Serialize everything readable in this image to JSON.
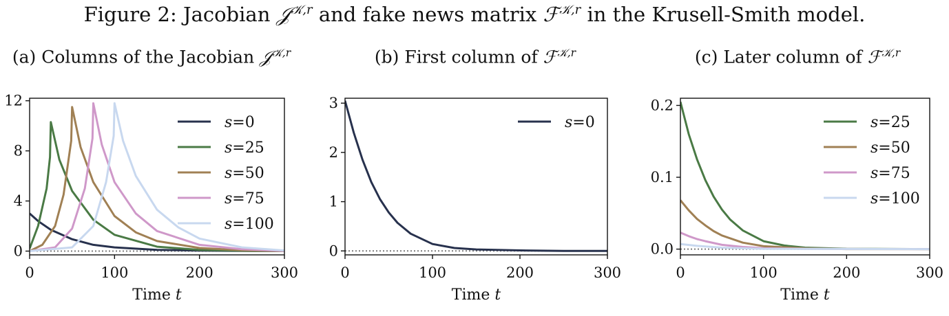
{
  "figure_title": {
    "prefix": "Figure 2: Jacobian ",
    "J": "𝒥",
    "J_sup": "𝒦,r",
    "middle": " and fake news matrix ",
    "F": "ℱ",
    "F_sup": "𝒦,r",
    "suffix": " in the Krusell-Smith model."
  },
  "panels": [
    {
      "prefix": "(a) Columns of the Jacobian ",
      "sym": "𝒥",
      "sup": "𝒦,r"
    },
    {
      "prefix": "(b) First column of ",
      "sym": "ℱ",
      "sup": "𝒦,r"
    },
    {
      "prefix": "(c) Later column of ",
      "sym": "ℱ",
      "sup": "𝒦,r"
    }
  ],
  "chart_data": [
    {
      "type": "line",
      "title": "(a) Columns of the Jacobian 𝒥^{𝒦,r}",
      "xlabel": "Time t",
      "ylabel": "",
      "xlim": [
        0,
        300
      ],
      "ylim": [
        -0.3,
        12.2
      ],
      "xticks": [
        "0",
        "100",
        "200",
        "300"
      ],
      "yticks": [
        "0",
        "4",
        "8",
        "12"
      ],
      "xtick_values": [
        0,
        100,
        200,
        300
      ],
      "ytick_values": [
        0,
        4,
        8,
        12
      ],
      "zero_line": true,
      "legend_position": "top-right",
      "series": [
        {
          "name": "s=0",
          "color": "#27314d",
          "points": [
            [
              0,
              3.0
            ],
            [
              10,
              2.4
            ],
            [
              25,
              1.7
            ],
            [
              50,
              0.95
            ],
            [
              75,
              0.5
            ],
            [
              100,
              0.3
            ],
            [
              150,
              0.1
            ],
            [
              200,
              0.04
            ],
            [
              250,
              0.01
            ],
            [
              300,
              0.0
            ]
          ]
        },
        {
          "name": "s=25",
          "color": "#4a7a45",
          "points": [
            [
              0,
              0.2
            ],
            [
              10,
              2.0
            ],
            [
              20,
              5.0
            ],
            [
              24,
              7.5
            ],
            [
              25,
              10.3
            ],
            [
              35,
              7.3
            ],
            [
              50,
              4.8
            ],
            [
              75,
              2.5
            ],
            [
              100,
              1.3
            ],
            [
              150,
              0.35
            ],
            [
              200,
              0.1
            ],
            [
              250,
              0.03
            ],
            [
              300,
              0.0
            ]
          ]
        },
        {
          "name": "s=50",
          "color": "#a08054",
          "points": [
            [
              0,
              0.0
            ],
            [
              15,
              0.5
            ],
            [
              30,
              2.0
            ],
            [
              40,
              4.5
            ],
            [
              49,
              8.8
            ],
            [
              50,
              11.5
            ],
            [
              60,
              8.3
            ],
            [
              75,
              5.5
            ],
            [
              100,
              2.8
            ],
            [
              125,
              1.5
            ],
            [
              150,
              0.8
            ],
            [
              200,
              0.25
            ],
            [
              250,
              0.07
            ],
            [
              300,
              0.0
            ]
          ]
        },
        {
          "name": "s=75",
          "color": "#cf98c9",
          "points": [
            [
              0,
              0.0
            ],
            [
              30,
              0.3
            ],
            [
              50,
              1.8
            ],
            [
              65,
              5.0
            ],
            [
              74,
              9.0
            ],
            [
              75,
              11.8
            ],
            [
              85,
              8.5
            ],
            [
              100,
              5.5
            ],
            [
              125,
              3.0
            ],
            [
              150,
              1.6
            ],
            [
              200,
              0.5
            ],
            [
              250,
              0.15
            ],
            [
              300,
              0.02
            ]
          ]
        },
        {
          "name": "s=100",
          "color": "#c8d8ef",
          "points": [
            [
              0,
              0.0
            ],
            [
              50,
              0.3
            ],
            [
              75,
              2.0
            ],
            [
              90,
              5.5
            ],
            [
              99,
              9.2
            ],
            [
              100,
              11.8
            ],
            [
              110,
              8.8
            ],
            [
              125,
              6.0
            ],
            [
              150,
              3.3
            ],
            [
              175,
              1.9
            ],
            [
              200,
              1.0
            ],
            [
              250,
              0.3
            ],
            [
              300,
              0.05
            ]
          ]
        }
      ]
    },
    {
      "type": "line",
      "title": "(b) First column of ℱ^{𝒦,r}",
      "xlabel": "Time t",
      "ylabel": "",
      "xlim": [
        0,
        300
      ],
      "ylim": [
        -0.08,
        3.1
      ],
      "xticks": [
        "0",
        "100",
        "200",
        "300"
      ],
      "yticks": [
        "0",
        "1",
        "2",
        "3"
      ],
      "xtick_values": [
        0,
        100,
        200,
        300
      ],
      "ytick_values": [
        0,
        1,
        2,
        3
      ],
      "zero_line": true,
      "legend_position": "top-right",
      "series": [
        {
          "name": "s=0",
          "color": "#27314d",
          "points": [
            [
              0,
              3.05
            ],
            [
              10,
              2.4
            ],
            [
              20,
              1.85
            ],
            [
              30,
              1.4
            ],
            [
              40,
              1.05
            ],
            [
              50,
              0.78
            ],
            [
              60,
              0.57
            ],
            [
              75,
              0.35
            ],
            [
              100,
              0.14
            ],
            [
              125,
              0.06
            ],
            [
              150,
              0.03
            ],
            [
              200,
              0.01
            ],
            [
              250,
              0.0
            ],
            [
              300,
              0.0
            ]
          ]
        }
      ]
    },
    {
      "type": "line",
      "title": "(c) Later column of ℱ^{𝒦,r}",
      "xlabel": "Time t",
      "ylabel": "",
      "xlim": [
        0,
        300
      ],
      "ylim": [
        -0.008,
        0.21
      ],
      "xticks": [
        "0",
        "100",
        "200",
        "300"
      ],
      "yticks": [
        "0.0",
        "0.1",
        "0.2"
      ],
      "xtick_values": [
        0,
        100,
        200,
        300
      ],
      "ytick_values": [
        0.0,
        0.1,
        0.2
      ],
      "zero_line": true,
      "legend_position": "top-right",
      "series": [
        {
          "name": "s=25",
          "color": "#4a7a45",
          "points": [
            [
              0,
              0.205
            ],
            [
              10,
              0.16
            ],
            [
              20,
              0.125
            ],
            [
              30,
              0.096
            ],
            [
              40,
              0.073
            ],
            [
              50,
              0.055
            ],
            [
              60,
              0.041
            ],
            [
              75,
              0.026
            ],
            [
              100,
              0.011
            ],
            [
              125,
              0.005
            ],
            [
              150,
              0.002
            ],
            [
              200,
              0.0005
            ],
            [
              300,
              0.0
            ]
          ]
        },
        {
          "name": "s=50",
          "color": "#a08054",
          "points": [
            [
              0,
              0.068
            ],
            [
              10,
              0.054
            ],
            [
              20,
              0.042
            ],
            [
              30,
              0.033
            ],
            [
              40,
              0.025
            ],
            [
              50,
              0.019
            ],
            [
              75,
              0.009
            ],
            [
              100,
              0.004
            ],
            [
              150,
              0.001
            ],
            [
              200,
              0.0
            ],
            [
              300,
              0.0
            ]
          ]
        },
        {
          "name": "s=75",
          "color": "#cf98c9",
          "points": [
            [
              0,
              0.023
            ],
            [
              10,
              0.018
            ],
            [
              20,
              0.014
            ],
            [
              30,
              0.011
            ],
            [
              50,
              0.006
            ],
            [
              75,
              0.003
            ],
            [
              100,
              0.0012
            ],
            [
              150,
              0.0003
            ],
            [
              300,
              0.0
            ]
          ]
        },
        {
          "name": "s=100",
          "color": "#c8d8ef",
          "points": [
            [
              0,
              0.007
            ],
            [
              20,
              0.0045
            ],
            [
              50,
              0.002
            ],
            [
              100,
              0.0004
            ],
            [
              300,
              0.0
            ]
          ]
        }
      ]
    }
  ]
}
